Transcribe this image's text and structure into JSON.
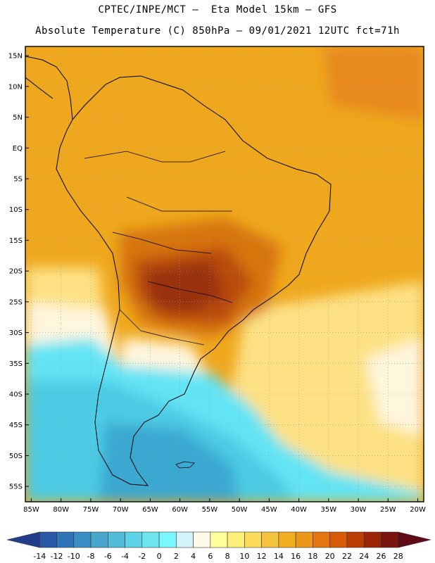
{
  "header": {
    "line1": "CPTEC/INPE/MCT –  Eta Model 15km – GFS",
    "line2": "Absolute Temperature (C) 850hPa – 09/01/2021 12UTC fct=71h"
  },
  "axes": {
    "lat_labels": [
      "15N",
      "10N",
      "5N",
      "EQ",
      "5S",
      "10S",
      "15S",
      "20S",
      "25S",
      "30S",
      "35S",
      "40S",
      "45S",
      "50S",
      "55S"
    ],
    "lat_values": [
      15,
      10,
      5,
      0,
      -5,
      -10,
      -15,
      -20,
      -25,
      -30,
      -35,
      -40,
      -45,
      -50,
      -55
    ],
    "lon_labels": [
      "85W",
      "80W",
      "75W",
      "70W",
      "65W",
      "60W",
      "55W",
      "50W",
      "45W",
      "40W",
      "35W",
      "30W",
      "25W",
      "20W"
    ],
    "lon_values": [
      -85,
      -80,
      -75,
      -70,
      -65,
      -60,
      -55,
      -50,
      -45,
      -40,
      -35,
      -30,
      -25,
      -20
    ],
    "lat_range": [
      -57.5,
      16.5
    ],
    "lon_range": [
      -86,
      -19
    ]
  },
  "colorbar": {
    "labels": [
      "-14",
      "-12",
      "-10",
      "-8",
      "-6",
      "-4",
      "-2",
      "0",
      "2",
      "4",
      "6",
      "8",
      "10",
      "12",
      "14",
      "16",
      "18",
      "20",
      "22",
      "24",
      "26",
      "28"
    ],
    "colors": [
      "#243c8c",
      "#2a58a4",
      "#2e74b6",
      "#3a8ec4",
      "#48a6cc",
      "#52bcd8",
      "#5ed2e6",
      "#6ee6f0",
      "#7af8ff",
      "#d4f4fc",
      "#fffae8",
      "#ffff9c",
      "#fff07a",
      "#fadc5a",
      "#f4c43e",
      "#f0ae1e",
      "#ec961a",
      "#e47612",
      "#d65a0a",
      "#bc3e06",
      "#9a2606",
      "#7a1410",
      "#600a18"
    ],
    "unit": "C"
  },
  "colors": {
    "warm_main": "#efa81d",
    "hot": "#d7740e",
    "very_hot": "#b94b0b",
    "extreme": "#99330d",
    "cool_yellow": "#fde184",
    "pale": "#fff6de",
    "cold": "#64e4f4",
    "colder": "#4ccce4",
    "coldest": "#3aa8d2",
    "frame": "#000000"
  }
}
